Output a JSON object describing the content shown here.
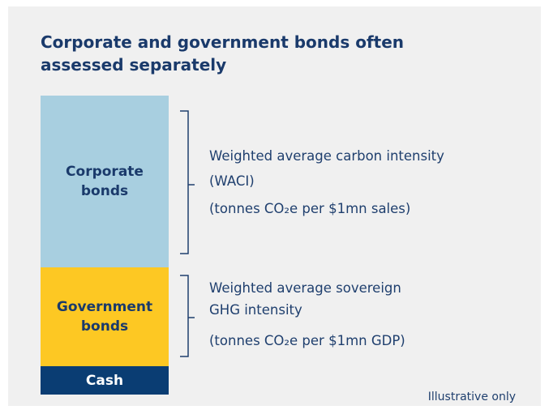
{
  "title": "Corporate and government bonds often assessed separately",
  "blocks": [
    {
      "label": "Corporate bonds",
      "description": [
        "Weighted average carbon intensity",
        "(WACI)"
      ],
      "unit": "(tonnes CO₂e per $1mn sales)"
    },
    {
      "label": "Government bonds",
      "description": [
        "Weighted average sovereign",
        "GHG intensity"
      ],
      "unit": "(tonnes CO₂e per $1mn GDP)"
    },
    {
      "label": "Cash"
    }
  ],
  "note": "Illustrative only"
}
